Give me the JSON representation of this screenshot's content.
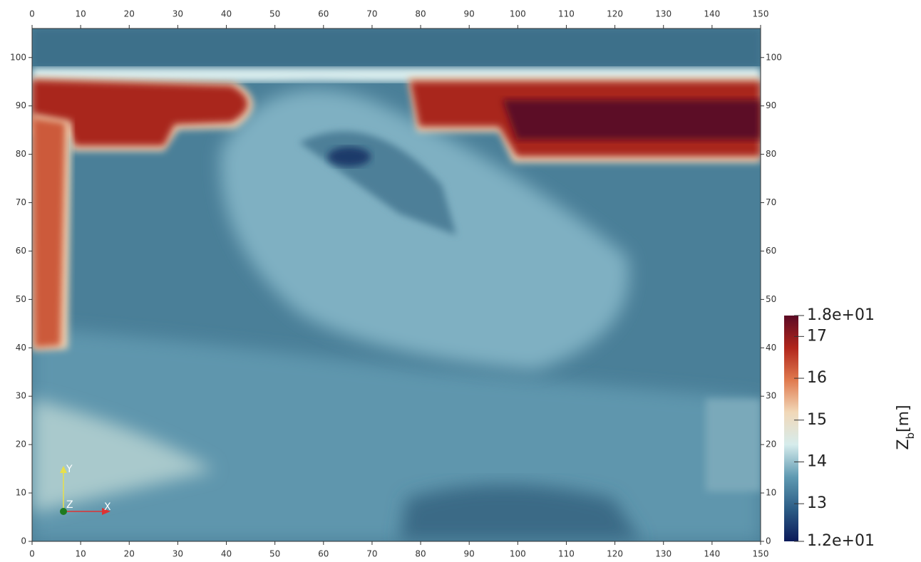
{
  "chart_data": {
    "type": "heatmap",
    "xlim": [
      0,
      150
    ],
    "ylim": [
      0,
      106
    ],
    "xticks": [
      0,
      10,
      20,
      30,
      40,
      50,
      60,
      70,
      80,
      90,
      100,
      110,
      120,
      130,
      140,
      150
    ],
    "yticks": [
      0,
      10,
      20,
      30,
      40,
      50,
      60,
      70,
      80,
      90,
      100
    ],
    "colorbar": {
      "title": {
        "symbol": "Z",
        "subscript": "b",
        "unit": "[m]"
      },
      "clim": [
        12.1,
        17.5
      ],
      "ticks": [
        {
          "value": 17.5,
          "label": "1.8e+01"
        },
        17,
        16,
        15,
        14,
        13,
        {
          "value": 12.1,
          "label": "1.2e+01"
        }
      ],
      "colors": [
        "#0b1a5a",
        "#2c5d86",
        "#5f9ab2",
        "#d6ecec",
        "#f1d8b8",
        "#e07a4e",
        "#b1261c",
        "#5c0a25"
      ]
    },
    "orientation_axes": {
      "x": "X",
      "y": "Y",
      "z": "Z"
    }
  }
}
